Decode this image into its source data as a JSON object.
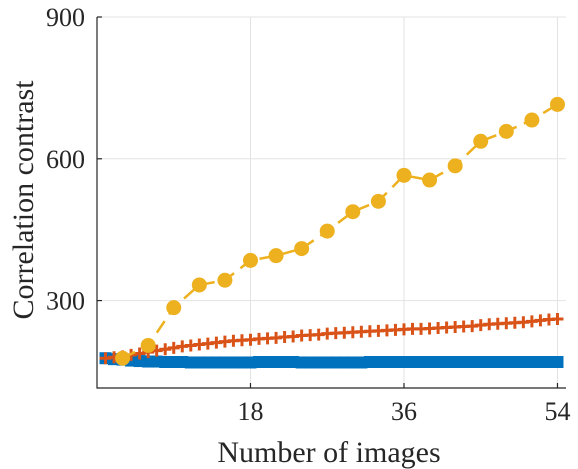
{
  "chart_data": {
    "type": "line",
    "xlabel": "Number of images",
    "ylabel": "Correlation contrast",
    "xlim": [
      0,
      55
    ],
    "ylim": [
      115,
      900
    ],
    "xticks": [
      18,
      36,
      54
    ],
    "yticks": [
      300,
      600,
      900
    ],
    "grid": true,
    "series": [
      {
        "color": "#EDB120",
        "marker": "circle",
        "line": "dashed",
        "x": [
          3,
          6,
          9,
          12,
          15,
          18,
          21,
          24,
          27,
          30,
          33,
          36,
          39,
          42,
          45,
          48,
          51,
          54
        ],
        "values": [
          178,
          205,
          285,
          333,
          343,
          385,
          395,
          410,
          447,
          488,
          510,
          565,
          555,
          585,
          637,
          658,
          682,
          715
        ]
      },
      {
        "color": "#D95319",
        "marker": "plus",
        "line": "solid",
        "x": [
          1,
          2,
          3,
          4,
          5,
          6,
          7,
          8,
          9,
          10,
          11,
          12,
          13,
          14,
          15,
          16,
          17,
          18,
          19,
          20,
          21,
          22,
          23,
          24,
          25,
          26,
          27,
          28,
          29,
          30,
          31,
          32,
          33,
          34,
          35,
          36,
          37,
          38,
          39,
          40,
          41,
          42,
          43,
          44,
          45,
          46,
          47,
          48,
          49,
          50,
          51,
          52,
          53,
          54
        ],
        "values": [
          178,
          180,
          182,
          185,
          188,
          191,
          194,
          197,
          200,
          203,
          205,
          207,
          209,
          211,
          213,
          215,
          216,
          217,
          219,
          220,
          221,
          223,
          224,
          226,
          227,
          228,
          230,
          231,
          232,
          233,
          234,
          235,
          236,
          237,
          238,
          239,
          240,
          240,
          241,
          242,
          243,
          244,
          245,
          246,
          248,
          250,
          251,
          252,
          253,
          254,
          256,
          258,
          260,
          261
        ]
      },
      {
        "color": "#0072BD",
        "marker": "square",
        "line": "solid",
        "x": [
          1,
          2,
          3,
          4,
          5,
          6,
          7,
          8,
          9,
          10,
          11,
          12,
          13,
          14,
          15,
          16,
          17,
          18,
          19,
          20,
          21,
          22,
          23,
          24,
          25,
          26,
          27,
          28,
          29,
          30,
          31,
          32,
          33,
          34,
          35,
          36,
          37,
          38,
          39,
          40,
          41,
          42,
          43,
          44,
          45,
          46,
          47,
          48,
          49,
          50,
          51,
          52,
          53,
          54
        ],
        "values": [
          178,
          176,
          175,
          173,
          172,
          171,
          171,
          170,
          170,
          170,
          169,
          169,
          169,
          169,
          169,
          169,
          169,
          169,
          170,
          170,
          170,
          170,
          170,
          169,
          169,
          169,
          169,
          169,
          169,
          169,
          169,
          170,
          170,
          170,
          170,
          170,
          170,
          170,
          170,
          170,
          170,
          170,
          170,
          170,
          170,
          170,
          170,
          170,
          170,
          170,
          170,
          170,
          170,
          170
        ]
      }
    ]
  }
}
